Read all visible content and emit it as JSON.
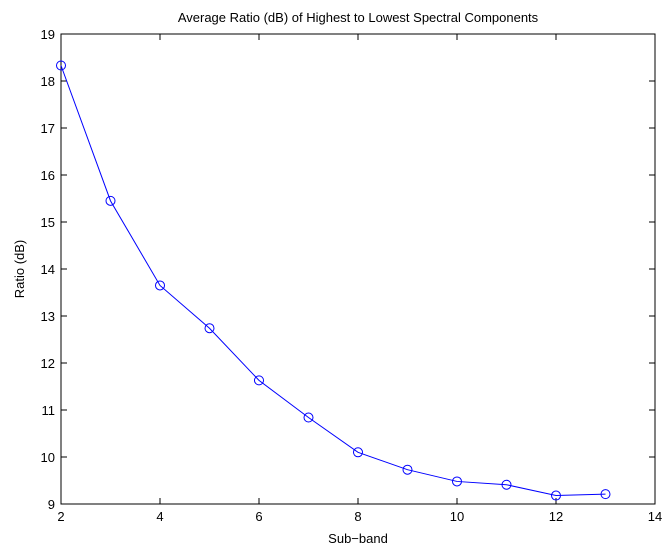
{
  "chart_data": {
    "type": "line",
    "title": "Average Ratio (dB) of Highest to Lowest Spectral Components",
    "xlabel": "Sub−band",
    "ylabel": "Ratio (dB)",
    "xlim": [
      2,
      14
    ],
    "ylim": [
      9,
      19
    ],
    "xticks": [
      2,
      4,
      6,
      8,
      10,
      12,
      14
    ],
    "yticks": [
      9,
      10,
      11,
      12,
      13,
      14,
      15,
      16,
      17,
      18,
      19
    ],
    "grid": false,
    "legend": "none",
    "marker": "circle",
    "series": [
      {
        "color": "#0000ff",
        "x": [
          2,
          3,
          4,
          5,
          6,
          7,
          8,
          9,
          10,
          11,
          12,
          13
        ],
        "y": [
          18.33,
          15.45,
          13.65,
          12.74,
          11.63,
          10.84,
          10.1,
          9.73,
          9.48,
          9.41,
          9.18,
          9.21
        ]
      }
    ]
  }
}
